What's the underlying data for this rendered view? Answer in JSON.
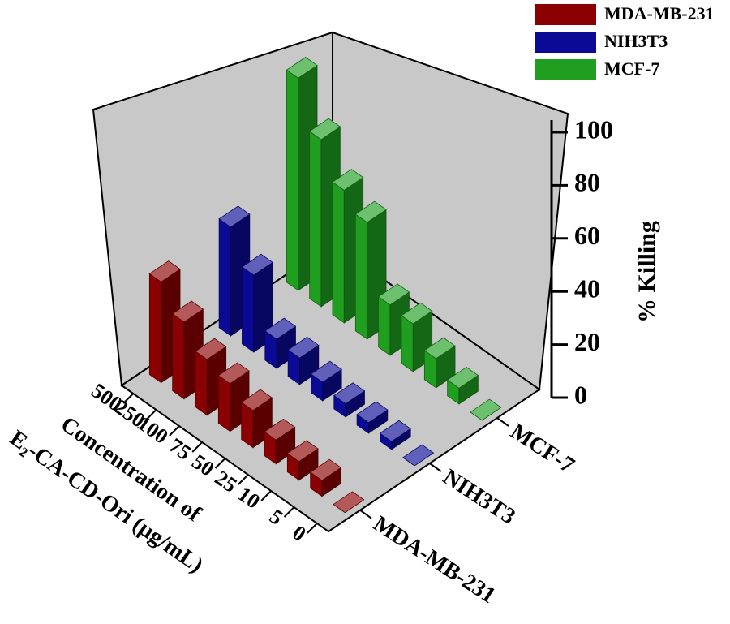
{
  "chart_data": {
    "type": "bar3d",
    "categories": [
      "500",
      "250",
      "100",
      "75",
      "50",
      "25",
      "10",
      "5",
      "0"
    ],
    "series": [
      {
        "name": "MDA-MB-231",
        "color": "#8b0000",
        "values": [
          38,
          29,
          21,
          18,
          14,
          9,
          7,
          6,
          0
        ]
      },
      {
        "name": "NIH3T3",
        "color": "#0a0a96",
        "values": [
          41,
          29,
          11,
          10,
          7,
          5,
          4,
          3,
          0
        ]
      },
      {
        "name": "MCF-7",
        "color": "#1f9e1f",
        "values": [
          80,
          63,
          50,
          44,
          19,
          18,
          11,
          6,
          0
        ]
      }
    ],
    "zlim": [
      0,
      100
    ],
    "zticks": [
      0,
      20,
      40,
      60,
      80,
      100
    ],
    "xlabel": [
      "Concentration of",
      "E₂-CA-CD-Ori (μg/mL)"
    ],
    "zlabel": "% Killing",
    "legend": "upper right"
  }
}
